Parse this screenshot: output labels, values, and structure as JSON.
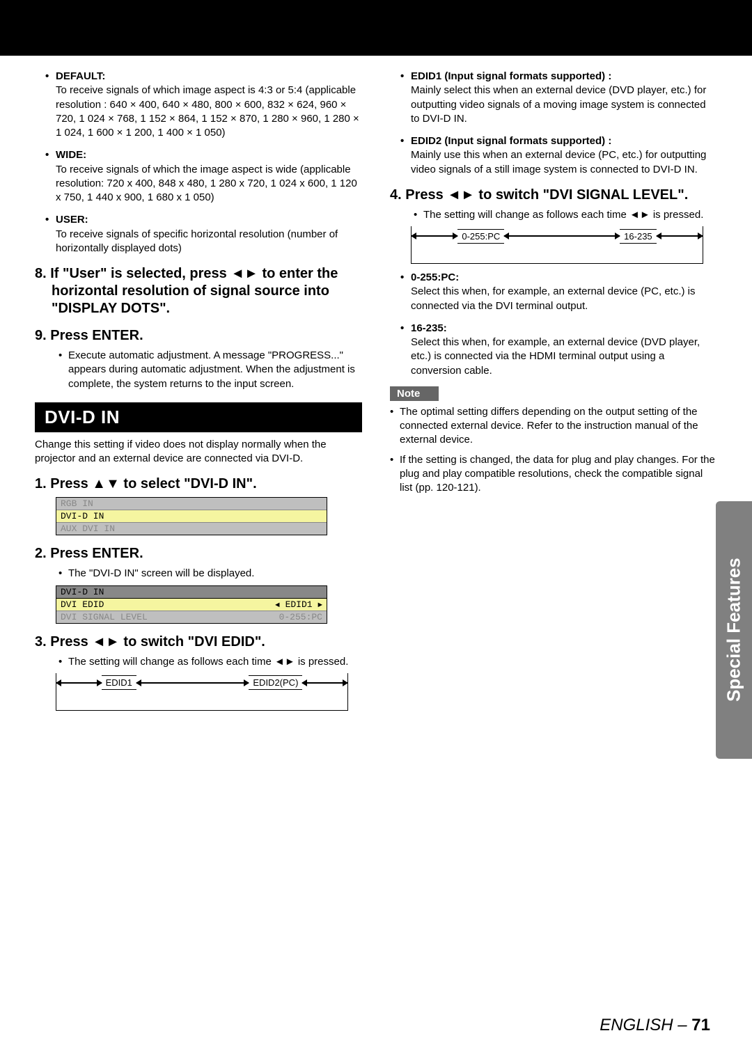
{
  "left": {
    "default": {
      "label": "DEFAULT:",
      "desc": "To receive signals of which image aspect is 4:3 or 5:4 (applicable resolution : 640 × 400, 640 × 480, 800 × 600, 832 × 624, 960 × 720, 1 024 × 768, 1 152 × 864, 1 152 × 870, 1 280 × 960, 1 280 × 1 024, 1 600 × 1 200, 1 400 × 1 050)"
    },
    "wide": {
      "label": "WIDE:",
      "desc": "To receive signals of which the image aspect is wide (applicable resolution: 720 x 400, 848 x 480, 1 280 x 720, 1 024 x 600, 1 120 x 750, 1 440 x 900, 1 680 x 1 050)"
    },
    "user": {
      "label": "USER:",
      "desc": "To receive signals of specific horizontal resolution (number of horizontally displayed dots)"
    },
    "step8": "8. If \"User\" is selected, press ◄► to enter the horizontal resolution of signal source into \"DISPLAY DOTS\".",
    "step9": "9. Press ENTER.",
    "step9desc": "Execute automatic adjustment. A message \"PROGRESS...\" appears during automatic adjustment. When the adjustment is complete, the system returns to the input screen.",
    "section": "DVI-D IN",
    "sectionDesc": "Change this setting if video does not display normally when the projector and an external device are connected via DVI-D.",
    "step1": "1. Press ▲▼ to select \"DVI-D IN\".",
    "menu1": {
      "r0": "RGB IN",
      "r1": "DVI-D IN",
      "r2": "AUX DVI IN"
    },
    "step2": "2. Press ENTER.",
    "step2desc": "The \"DVI-D IN\" screen will be displayed.",
    "menu2": {
      "header": "DVI-D IN",
      "r0l": "DVI EDID",
      "r0r": "EDID1",
      "r1l": "DVI SIGNAL LEVEL",
      "r1r": "0-255:PC"
    },
    "step3": "3. Press ◄► to switch \"DVI EDID\".",
    "step3desc": "The setting will change as follows each time ◄► is pressed.",
    "toggle1": {
      "a": "EDID1",
      "b": "EDID2(PC)"
    }
  },
  "right": {
    "edid1": {
      "label": "EDID1 (Input signal formats supported) :",
      "desc": "Mainly select this when an external device (DVD player, etc.) for outputting video signals of a moving image system is connected to DVI-D IN."
    },
    "edid2": {
      "label": "EDID2 (Input signal formats supported) :",
      "desc": "Mainly use this when an external device (PC, etc.) for outputting video signals of a still image system is connected to DVI-D IN."
    },
    "step4": "4. Press ◄► to switch \"DVI SIGNAL LEVEL\".",
    "step4desc": "The setting will change as follows each time ◄► is pressed.",
    "toggle2": {
      "a": "0-255:PC",
      "b": "16-235"
    },
    "opt0255": {
      "label": "0-255:PC:",
      "desc": "Select this when, for example, an external device (PC, etc.) is connected via the DVI terminal output."
    },
    "opt16235": {
      "label": "16-235:",
      "desc": "Select this when, for example, an external device (DVD player, etc.) is connected via the HDMI terminal output using a conversion cable."
    },
    "note": "Note",
    "noteA": "The optimal setting differs depending on the output setting of the connected external device. Refer to the instruction manual of the external device.",
    "noteB": "If the setting is changed, the data for plug and play changes. For the plug and play compatible resolutions, check the compatible signal list (pp. 120-121)."
  },
  "sideTab": "Special Features",
  "footer": {
    "lang": "ENGLISH – ",
    "page": "71"
  }
}
